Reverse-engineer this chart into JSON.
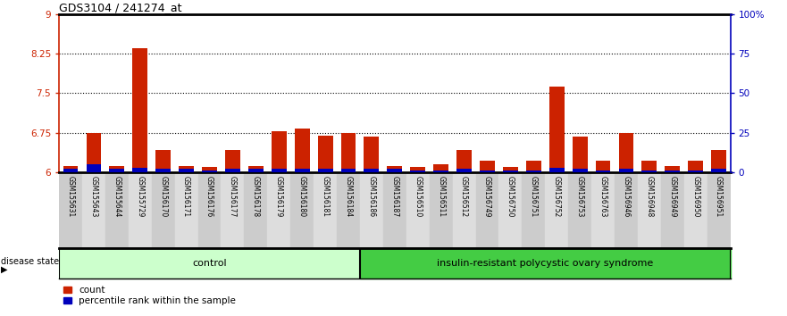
{
  "title": "GDS3104 / 241274_at",
  "samples": [
    "GSM155631",
    "GSM155643",
    "GSM155644",
    "GSM155729",
    "GSM156170",
    "GSM156171",
    "GSM156176",
    "GSM156177",
    "GSM156178",
    "GSM156179",
    "GSM156180",
    "GSM156181",
    "GSM156184",
    "GSM156186",
    "GSM156187",
    "GSM156510",
    "GSM156511",
    "GSM156512",
    "GSM156749",
    "GSM156750",
    "GSM156751",
    "GSM156752",
    "GSM156753",
    "GSM156763",
    "GSM156946",
    "GSM156948",
    "GSM156949",
    "GSM156950",
    "GSM156951"
  ],
  "values": [
    6.12,
    6.75,
    6.12,
    8.35,
    6.42,
    6.12,
    6.1,
    6.42,
    6.12,
    6.78,
    6.83,
    6.7,
    6.75,
    6.68,
    6.12,
    6.1,
    6.15,
    6.42,
    6.22,
    6.1,
    6.22,
    7.62,
    6.68,
    6.22,
    6.75,
    6.22,
    6.12,
    6.22,
    6.42
  ],
  "percentile_values": [
    2,
    5,
    2,
    3,
    2,
    2,
    1,
    2,
    2,
    2,
    2,
    2,
    2,
    2,
    2,
    1,
    1,
    2,
    1,
    1,
    1,
    3,
    2,
    1,
    2,
    1,
    1,
    1,
    2
  ],
  "control_count": 13,
  "ylim_left": [
    6,
    9
  ],
  "ylim_right": [
    0,
    100
  ],
  "yticks_left": [
    6,
    6.75,
    7.5,
    8.25,
    9
  ],
  "ytick_labels_left": [
    "6",
    "6.75",
    "7.5",
    "8.25",
    "9"
  ],
  "yticks_right": [
    0,
    25,
    50,
    75,
    100
  ],
  "ytick_labels_right": [
    "0",
    "25",
    "50",
    "75",
    "100%"
  ],
  "bar_color": "#cc2200",
  "percentile_color": "#0000bb",
  "control_bg": "#ccffcc",
  "disease_bg": "#44cc44",
  "label_bg_odd": "#cccccc",
  "label_bg_even": "#dddddd",
  "control_label": "control",
  "disease_label": "insulin-resistant polycystic ovary syndrome",
  "disease_state_label": "disease state",
  "legend_count_label": "count",
  "legend_percentile_label": "percentile rank within the sample",
  "axis_color_left": "#cc2200",
  "axis_color_right": "#0000bb",
  "bar_width": 0.65
}
